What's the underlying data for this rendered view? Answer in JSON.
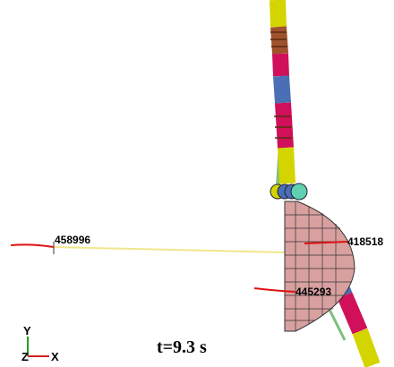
{
  "node_labels": [
    "458996",
    "418518",
    "445293"
  ],
  "time_label": "t=9.3 s",
  "axes": {
    "y": "Y",
    "z": "Z",
    "x": "X"
  }
}
